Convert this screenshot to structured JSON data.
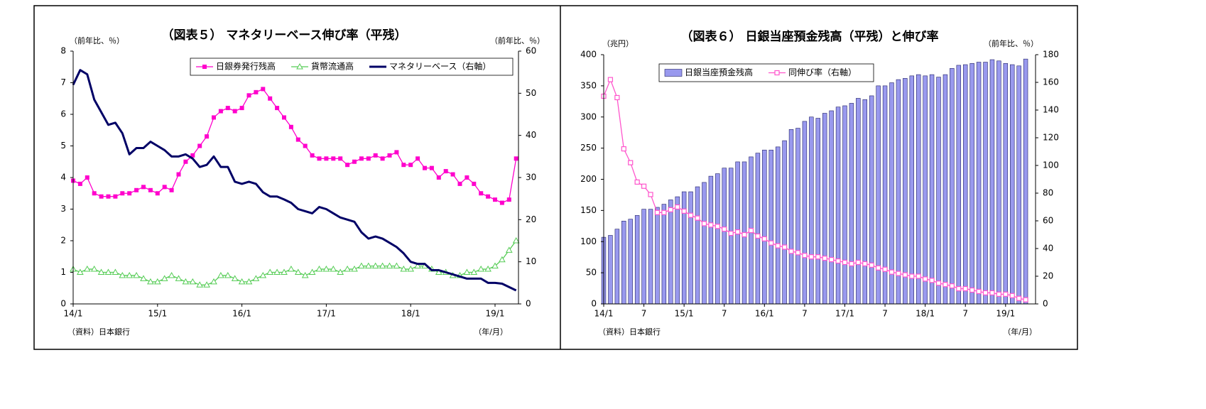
{
  "chart_data": [
    {
      "type": "line",
      "title": "（図表５） マネタリーベース伸び率（平残）",
      "y_label": "（前年比、％）",
      "y2_label": "（前年比、％）",
      "x_label": "（年/月）",
      "source": "（資料）日本銀行",
      "categories": [
        "14/1",
        null,
        null,
        null,
        null,
        null,
        null,
        null,
        null,
        null,
        null,
        null,
        "15/1",
        null,
        null,
        null,
        null,
        null,
        null,
        null,
        null,
        null,
        null,
        null,
        "16/1",
        null,
        null,
        null,
        null,
        null,
        null,
        null,
        null,
        null,
        null,
        null,
        "17/1",
        null,
        null,
        null,
        null,
        null,
        null,
        null,
        null,
        null,
        null,
        null,
        "18/1",
        null,
        null,
        null,
        null,
        null,
        null,
        null,
        null,
        null,
        null,
        null,
        "19/1",
        null,
        null,
        null
      ],
      "ylim": [
        0,
        8
      ],
      "yticks": [
        0,
        1,
        2,
        3,
        4,
        5,
        6,
        7,
        8
      ],
      "y2lim": [
        0,
        60
      ],
      "y2ticks": [
        0,
        10,
        20,
        30,
        40,
        50,
        60
      ],
      "legend": "top-right",
      "series": [
        {
          "name": "日銀券発行残高",
          "color": "#ff00cc",
          "marker": "square",
          "values": [
            3.9,
            3.8,
            4.0,
            3.5,
            3.4,
            3.4,
            3.4,
            3.5,
            3.5,
            3.6,
            3.7,
            3.6,
            3.5,
            3.7,
            3.6,
            4.1,
            4.5,
            4.7,
            5.0,
            5.3,
            5.9,
            6.1,
            6.2,
            6.1,
            6.2,
            6.6,
            6.7,
            6.8,
            6.5,
            6.2,
            5.9,
            5.6,
            5.2,
            5.0,
            4.7,
            4.6,
            4.6,
            4.6,
            4.6,
            4.4,
            4.5,
            4.6,
            4.6,
            4.7,
            4.6,
            4.7,
            4.8,
            4.4,
            4.4,
            4.6,
            4.3,
            4.3,
            4.0,
            4.2,
            4.1,
            3.8,
            4.0,
            3.8,
            3.5,
            3.4,
            3.3,
            3.2,
            3.3,
            4.6
          ]
        },
        {
          "name": "貨幣流通高",
          "color": "#55cc55",
          "marker": "triangle",
          "values": [
            1.1,
            1.0,
            1.1,
            1.1,
            1.0,
            1.0,
            1.0,
            0.9,
            0.9,
            0.9,
            0.8,
            0.7,
            0.7,
            0.8,
            0.9,
            0.8,
            0.7,
            0.7,
            0.6,
            0.6,
            0.7,
            0.9,
            0.9,
            0.8,
            0.7,
            0.7,
            0.8,
            0.9,
            1.0,
            1.0,
            1.0,
            1.1,
            1.0,
            0.9,
            1.0,
            1.1,
            1.1,
            1.1,
            1.0,
            1.1,
            1.1,
            1.2,
            1.2,
            1.2,
            1.2,
            1.2,
            1.2,
            1.1,
            1.1,
            1.2,
            1.2,
            1.1,
            1.0,
            1.0,
            0.9,
            0.9,
            1.0,
            1.0,
            1.1,
            1.1,
            1.2,
            1.4,
            1.7,
            2.0
          ]
        },
        {
          "name": "マネタリーベース（右軸）",
          "color": "#000066",
          "marker": "none",
          "axis": "y2",
          "values": [
            52,
            55.5,
            54.5,
            48.5,
            45.5,
            42.5,
            43,
            40.5,
            35.5,
            37,
            37,
            38.5,
            37.5,
            36.5,
            35,
            35,
            35.5,
            34.5,
            32.5,
            33,
            35,
            32.5,
            32.5,
            29,
            28.5,
            29,
            28.5,
            26.5,
            25.5,
            25.5,
            24.8,
            24,
            22.5,
            22,
            21.5,
            23,
            22.5,
            21.5,
            20.5,
            20,
            19.5,
            17,
            15.5,
            16,
            15.5,
            14.5,
            13.5,
            12,
            10,
            9.5,
            9.5,
            8,
            8,
            7.5,
            7,
            6.5,
            6,
            6,
            6,
            5,
            5,
            4.8,
            4,
            3.2
          ]
        }
      ]
    },
    {
      "type": "combo",
      "title": "（図表６） 日銀当座預金残高（平残）と伸び率",
      "y_label": "（兆円）",
      "y2_label": "（前年比、％）",
      "x_label": "（年/月）",
      "source": "（資料）日本銀行",
      "categories": [
        "14/1",
        null,
        null,
        null,
        null,
        null,
        "7",
        null,
        null,
        null,
        null,
        null,
        "15/1",
        null,
        null,
        null,
        null,
        null,
        "7",
        null,
        null,
        null,
        null,
        null,
        "16/1",
        null,
        null,
        null,
        null,
        null,
        "7",
        null,
        null,
        null,
        null,
        null,
        "17/1",
        null,
        null,
        null,
        null,
        null,
        "7",
        null,
        null,
        null,
        null,
        null,
        "18/1",
        null,
        null,
        null,
        null,
        null,
        "7",
        null,
        null,
        null,
        null,
        null,
        "19/1",
        null,
        null,
        null
      ],
      "ylim": [
        0,
        400
      ],
      "yticks": [
        0,
        50,
        100,
        150,
        200,
        250,
        300,
        350,
        400
      ],
      "y2lim": [
        0,
        180
      ],
      "y2ticks": [
        0,
        20,
        40,
        60,
        80,
        100,
        120,
        140,
        160,
        180
      ],
      "legend": "top-left",
      "series": [
        {
          "name": "日銀当座預金残高",
          "color": "#9999ee",
          "marker": "bar",
          "values": [
            107,
            110,
            120,
            133,
            136,
            142,
            152,
            152,
            155,
            160,
            167,
            172,
            180,
            180,
            188,
            195,
            205,
            209,
            218,
            218,
            228,
            228,
            236,
            242,
            247,
            247,
            252,
            262,
            280,
            282,
            293,
            300,
            298,
            306,
            310,
            316,
            318,
            322,
            330,
            328,
            334,
            350,
            350,
            355,
            360,
            362,
            366,
            368,
            366,
            368,
            364,
            368,
            378,
            383,
            384,
            386,
            388,
            388,
            392,
            390,
            386,
            384,
            382,
            393
          ]
        },
        {
          "name": "同伸び率（右軸）",
          "color": "#ff55cc",
          "marker": "open-square",
          "axis": "y2",
          "values": [
            150,
            162,
            149,
            112,
            102,
            88,
            85,
            79,
            66,
            66,
            68,
            70,
            67,
            64,
            62,
            58,
            57,
            56,
            54,
            51,
            52,
            50,
            53,
            49,
            47,
            44,
            42,
            41,
            38,
            37,
            35,
            34,
            34,
            33,
            32,
            31,
            30,
            29,
            30,
            29,
            28,
            26,
            25,
            23,
            22,
            21,
            20,
            20,
            18,
            17,
            15,
            14,
            13,
            11,
            11,
            10,
            9,
            8,
            8,
            7,
            7,
            6,
            4,
            3
          ]
        }
      ]
    }
  ]
}
